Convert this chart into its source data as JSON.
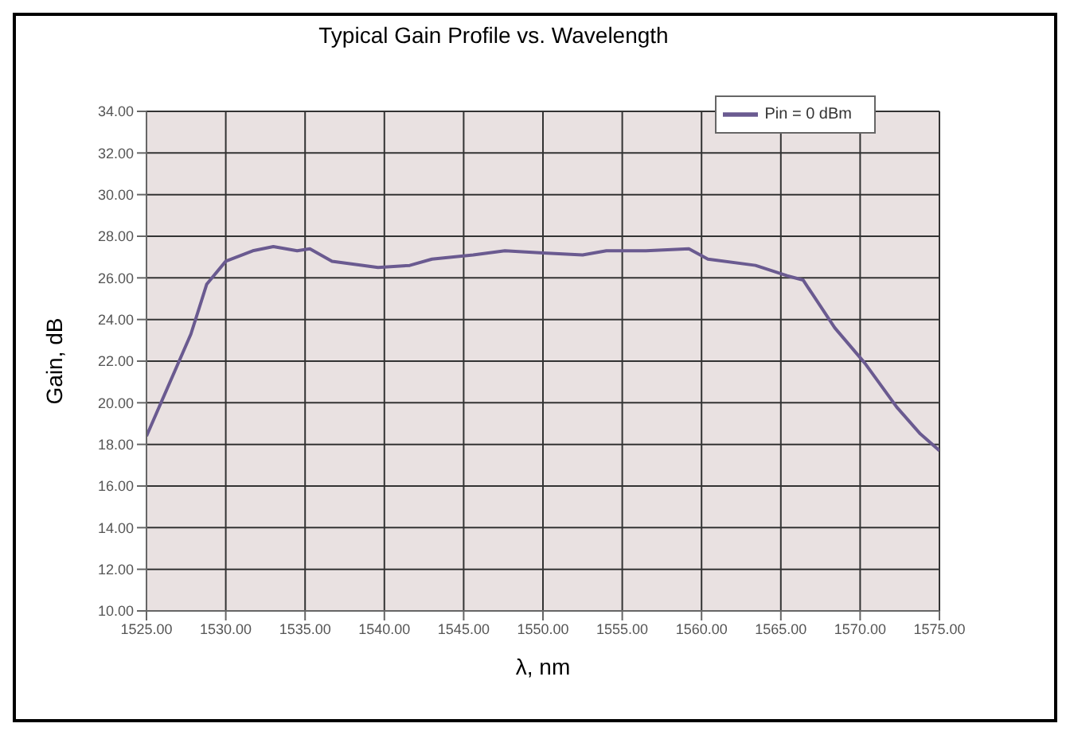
{
  "chart_data": {
    "type": "line",
    "title": "Typical Gain Profile vs. Wavelength",
    "xlabel": "λ, nm",
    "ylabel": "Gain, dB",
    "xlim": [
      1525,
      1575
    ],
    "xticks": [
      {
        "value": 1525,
        "label": "1525.00"
      },
      {
        "value": 1530,
        "label": "1530.00"
      },
      {
        "value": 1535,
        "label": "1535.00"
      },
      {
        "value": 1540,
        "label": "1540.00"
      },
      {
        "value": 1545,
        "label": "1545.00"
      },
      {
        "value": 1550,
        "label": "1550.00"
      },
      {
        "value": 1555,
        "label": "1555.00"
      },
      {
        "value": 1560,
        "label": "1560.00"
      },
      {
        "value": 1565,
        "label": "1565.00"
      },
      {
        "value": 1570,
        "label": "1570.00"
      },
      {
        "value": 1575,
        "label": "1575.00"
      }
    ],
    "ylim": [
      10,
      34
    ],
    "yticks": [
      {
        "value": 10,
        "label": "10.00"
      },
      {
        "value": 12,
        "label": "12.00"
      },
      {
        "value": 14,
        "label": "14.00"
      },
      {
        "value": 16,
        "label": "16.00"
      },
      {
        "value": 18,
        "label": "18.00"
      },
      {
        "value": 20,
        "label": "20.00"
      },
      {
        "value": 22,
        "label": "22.00"
      },
      {
        "value": 24,
        "label": "24.00"
      },
      {
        "value": 26,
        "label": "26.00"
      },
      {
        "value": 28,
        "label": "28.00"
      },
      {
        "value": 30,
        "label": "30.00"
      },
      {
        "value": 32,
        "label": "32.00"
      },
      {
        "value": 34,
        "label": "34.00"
      }
    ],
    "grid": true,
    "legend": "top right",
    "marker": "none",
    "line_style": "solid",
    "series": [
      {
        "name": "Pin = 0 dBm",
        "color": "#6a5a90",
        "x": [
          1525,
          1527.8,
          1528.8,
          1530,
          1531.7,
          1533,
          1534.5,
          1535.3,
          1536.7,
          1539.6,
          1541.6,
          1543,
          1545.6,
          1547.6,
          1550,
          1552.5,
          1554,
          1556.5,
          1559.2,
          1560.4,
          1563.4,
          1565.4,
          1566.4,
          1568.4,
          1570.3,
          1572.3,
          1573.8,
          1575
        ],
        "values": [
          18.4,
          23.3,
          25.7,
          26.8,
          27.3,
          27.5,
          27.3,
          27.4,
          26.8,
          26.5,
          26.6,
          26.9,
          27.1,
          27.3,
          27.2,
          27.1,
          27.3,
          27.3,
          27.4,
          26.9,
          26.6,
          26.1,
          25.9,
          23.6,
          21.9,
          19.8,
          18.5,
          17.7
        ]
      }
    ]
  }
}
